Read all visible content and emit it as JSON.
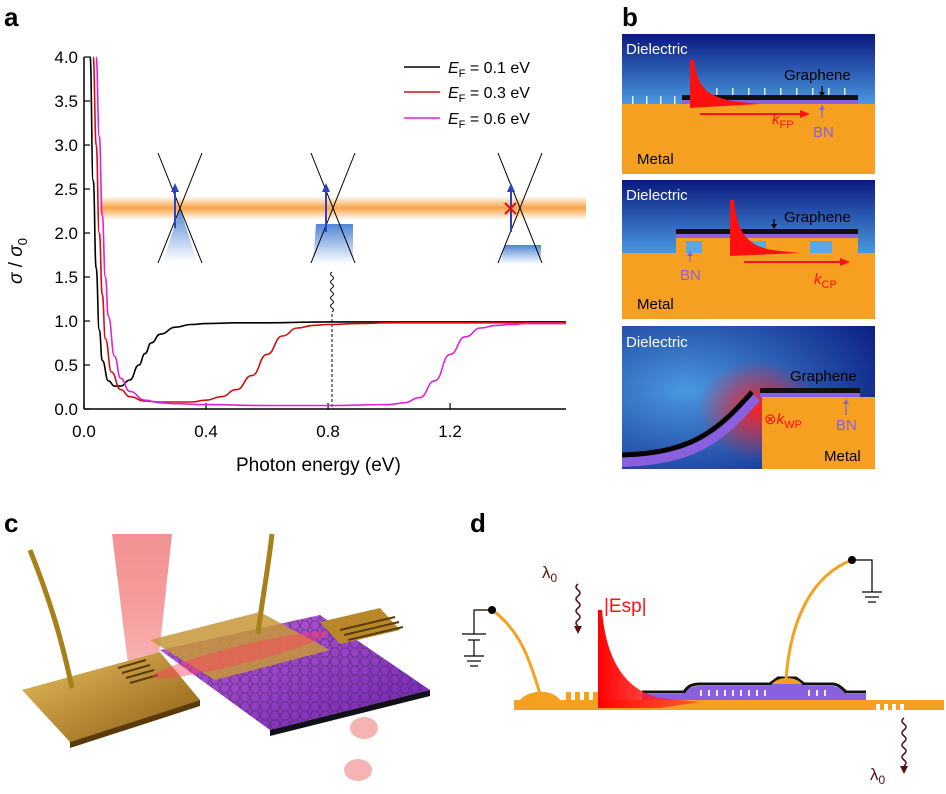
{
  "panels": {
    "a": {
      "letter": "a",
      "ylabel_sym": "σ",
      "ylabel_sub_sym": "σ",
      "ylabel_sub": "0",
      "xlabel": "Photon energy (eV)",
      "legend": [
        {
          "prefix": "E",
          "sub": "F",
          "text": " = 0.1 eV",
          "color": "#000000"
        },
        {
          "prefix": "E",
          "sub": "F",
          "text": " = 0.3 eV",
          "color": "#d01010"
        },
        {
          "prefix": "E",
          "sub": "F",
          "text": " = 0.6 eV",
          "color": "#e020e0"
        }
      ]
    },
    "b": {
      "letter": "b",
      "sub1": {
        "dielectric": "Dielectric",
        "graphene": "Graphene",
        "bn": "BN",
        "metal": "Metal",
        "k": "k",
        "k_sub": "FP"
      },
      "sub2": {
        "dielectric": "Dielectric",
        "graphene": "Graphene",
        "bn": "BN",
        "metal": "Metal",
        "k": "k",
        "k_sub": "CP"
      },
      "sub3": {
        "dielectric": "Dielectric",
        "graphene": "Graphene",
        "bn": "BN",
        "metal": "Metal",
        "k": "k",
        "k_sub": "WP",
        "otimes": "⊗"
      }
    },
    "c": {
      "letter": "c"
    },
    "d": {
      "letter": "d",
      "lambda_top": "λ",
      "lambda_top_sub": "0",
      "lambda_bottom": "λ",
      "lambda_bottom_sub": "0",
      "field_label": "|Esp|"
    }
  },
  "colors": {
    "black_series": "#000000",
    "red_series": "#d01010",
    "magenta_series": "#e020e0",
    "metal": "#f5a020",
    "dielectric_dark": "#0a1a80",
    "dielectric_light": "#5aa8e8",
    "bn": "#8a60e0",
    "red_field": "#ff1010"
  },
  "chart_data": {
    "type": "line",
    "title": "",
    "xlabel": "Photon energy (eV)",
    "ylabel": "σ / σ0",
    "xlim": [
      0,
      1.58
    ],
    "ylim": [
      0,
      4.0
    ],
    "xticks": [
      0.0,
      0.4,
      0.8,
      1.2
    ],
    "xtick_labels": [
      "0.0",
      "0.4",
      "0.8",
      "1.2"
    ],
    "yticks": [
      0.0,
      0.5,
      1.0,
      1.5,
      2.0,
      2.5,
      3.0,
      3.5,
      4.0
    ],
    "ytick_labels": [
      "0.0",
      "0.5",
      "1.0",
      "1.5",
      "2.0",
      "2.5",
      "3.0",
      "3.5",
      "4.0"
    ],
    "grid": false,
    "legend_position": "top-right",
    "series": [
      {
        "name": "EF = 0.1 eV",
        "color": "#000000",
        "x": [
          0.02,
          0.03,
          0.04,
          0.05,
          0.06,
          0.08,
          0.1,
          0.12,
          0.15,
          0.18,
          0.2,
          0.22,
          0.25,
          0.3,
          0.35,
          0.4,
          0.5,
          0.6,
          0.8,
          1.0,
          1.2,
          1.4,
          1.58
        ],
        "y": [
          4.0,
          2.6,
          1.6,
          0.9,
          0.55,
          0.32,
          0.26,
          0.26,
          0.33,
          0.5,
          0.63,
          0.75,
          0.85,
          0.93,
          0.96,
          0.97,
          0.98,
          0.98,
          0.99,
          0.99,
          0.99,
          0.99,
          0.99
        ]
      },
      {
        "name": "EF = 0.3 eV",
        "color": "#d01010",
        "x": [
          0.03,
          0.04,
          0.05,
          0.06,
          0.07,
          0.09,
          0.12,
          0.15,
          0.2,
          0.25,
          0.3,
          0.35,
          0.4,
          0.45,
          0.5,
          0.55,
          0.6,
          0.65,
          0.7,
          0.75,
          0.8,
          0.9,
          1.0,
          1.2,
          1.4,
          1.58
        ],
        "y": [
          4.0,
          3.0,
          2.0,
          1.3,
          0.8,
          0.42,
          0.22,
          0.14,
          0.09,
          0.08,
          0.08,
          0.08,
          0.1,
          0.14,
          0.22,
          0.38,
          0.62,
          0.83,
          0.92,
          0.95,
          0.96,
          0.97,
          0.98,
          0.98,
          0.98,
          0.98
        ]
      },
      {
        "name": "EF = 0.6 eV",
        "color": "#e020e0",
        "x": [
          0.04,
          0.05,
          0.06,
          0.07,
          0.08,
          0.1,
          0.12,
          0.15,
          0.2,
          0.25,
          0.3,
          0.4,
          0.6,
          0.8,
          1.0,
          1.05,
          1.1,
          1.15,
          1.2,
          1.25,
          1.3,
          1.35,
          1.4,
          1.45,
          1.5,
          1.58
        ],
        "y": [
          4.0,
          3.1,
          2.2,
          1.5,
          1.05,
          0.6,
          0.35,
          0.2,
          0.1,
          0.07,
          0.06,
          0.05,
          0.04,
          0.04,
          0.05,
          0.07,
          0.13,
          0.32,
          0.62,
          0.82,
          0.92,
          0.95,
          0.96,
          0.97,
          0.97,
          0.97
        ]
      }
    ]
  }
}
